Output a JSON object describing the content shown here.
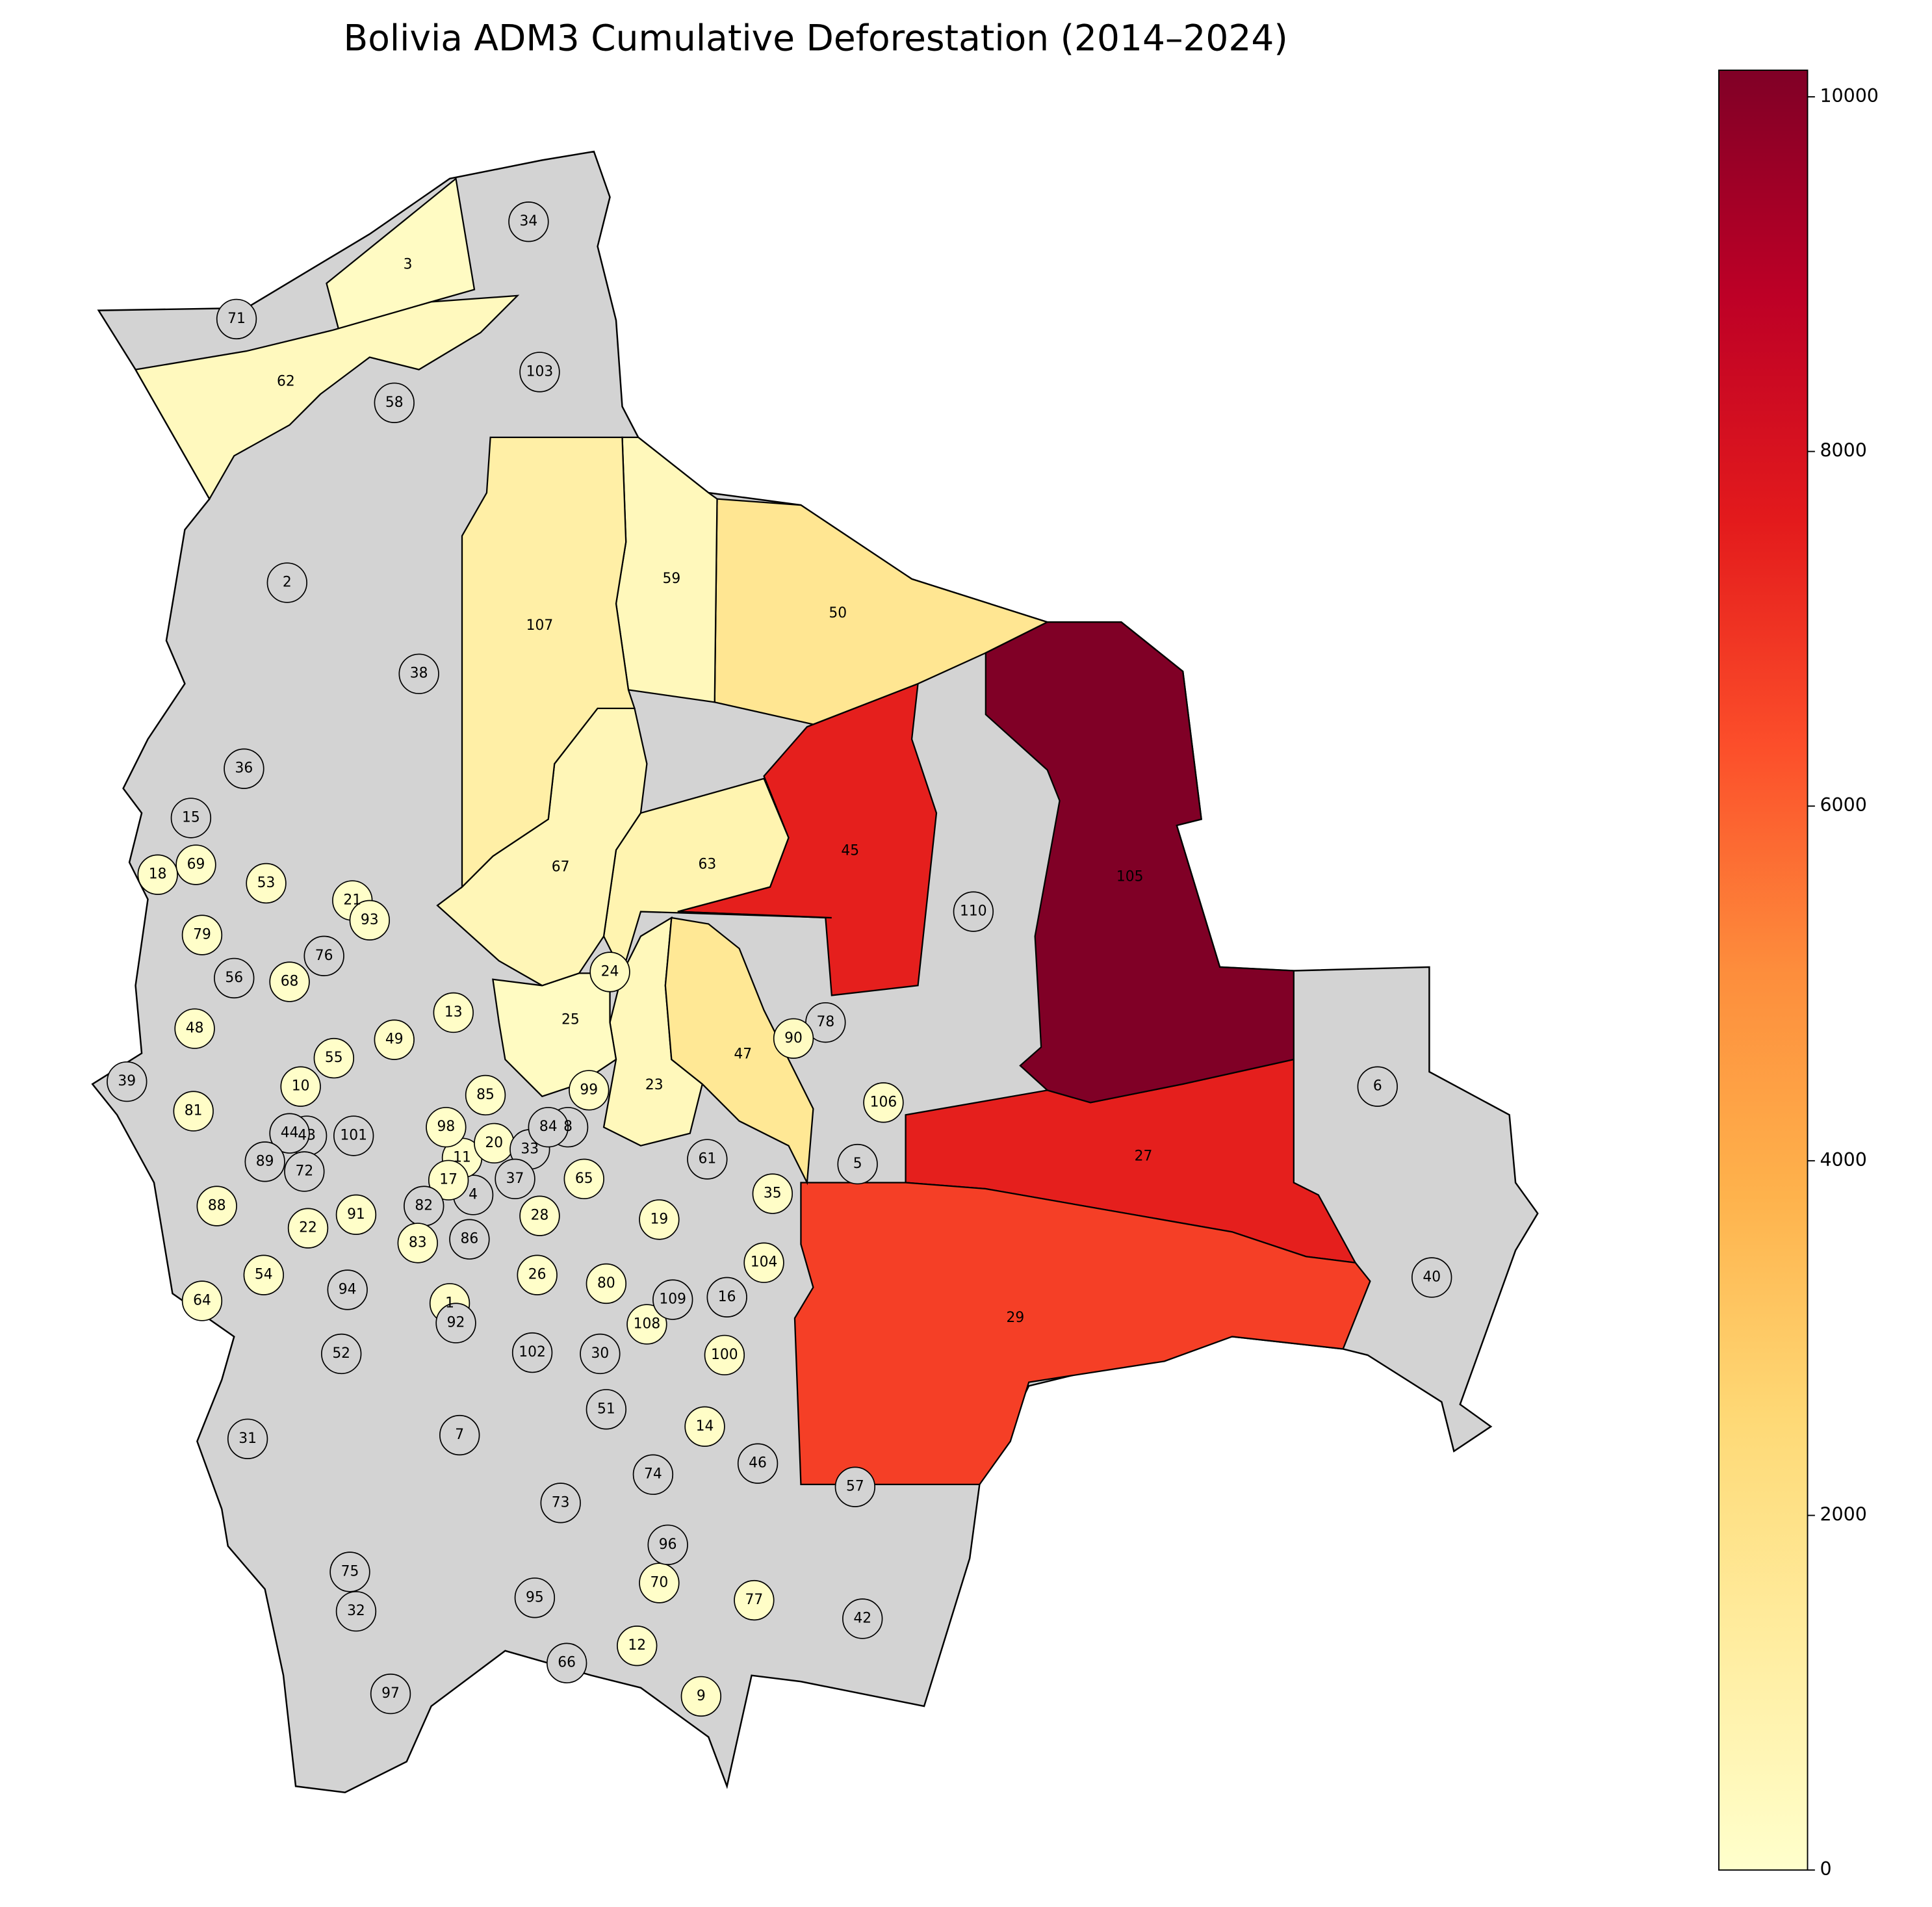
{
  "chart_data": {
    "type": "choropleth",
    "title": "Bolivia ADM3 Cumulative Deforestation (2014–2024)",
    "cmap": "YlOrRd",
    "colors": [
      "#ffffcc",
      "#ffeda0",
      "#fed976",
      "#feb24c",
      "#fd8d3c",
      "#fc4e2a",
      "#e31a1c",
      "#bd0026",
      "#800026"
    ],
    "missing_color": "#d3d3d3",
    "clim": [
      0,
      10150
    ],
    "cticks": [
      0,
      2000,
      4000,
      6000,
      8000,
      10000
    ],
    "regions": [
      {
        "name": "1",
        "value": 150
      },
      {
        "name": "2",
        "value": null
      },
      {
        "name": "3",
        "value": 250
      },
      {
        "name": "4",
        "value": null
      },
      {
        "name": "5",
        "value": null
      },
      {
        "name": "6",
        "value": null
      },
      {
        "name": "7",
        "value": null
      },
      {
        "name": "8",
        "value": null
      },
      {
        "name": "9",
        "value": 150
      },
      {
        "name": "10",
        "value": 100
      },
      {
        "name": "11",
        "value": 100
      },
      {
        "name": "12",
        "value": 100
      },
      {
        "name": "13",
        "value": 150
      },
      {
        "name": "14",
        "value": 150
      },
      {
        "name": "15",
        "value": null
      },
      {
        "name": "16",
        "value": null
      },
      {
        "name": "17",
        "value": 100
      },
      {
        "name": "18",
        "value": 100
      },
      {
        "name": "19",
        "value": 150
      },
      {
        "name": "20",
        "value": 100
      },
      {
        "name": "21",
        "value": 100
      },
      {
        "name": "22",
        "value": 100
      },
      {
        "name": "23",
        "value": 500
      },
      {
        "name": "24",
        "value": 300
      },
      {
        "name": "25",
        "value": 300
      },
      {
        "name": "26",
        "value": 100
      },
      {
        "name": "27",
        "value": 7500
      },
      {
        "name": "28",
        "value": 100
      },
      {
        "name": "29",
        "value": 6700
      },
      {
        "name": "30",
        "value": null
      },
      {
        "name": "31",
        "value": null
      },
      {
        "name": "32",
        "value": null
      },
      {
        "name": "33",
        "value": null
      },
      {
        "name": "34",
        "value": null
      },
      {
        "name": "35",
        "value": 150
      },
      {
        "name": "36",
        "value": null
      },
      {
        "name": "37",
        "value": null
      },
      {
        "name": "38",
        "value": null
      },
      {
        "name": "39",
        "value": null
      },
      {
        "name": "40",
        "value": null
      },
      {
        "name": "42",
        "value": null
      },
      {
        "name": "43",
        "value": null
      },
      {
        "name": "44",
        "value": null
      },
      {
        "name": "45",
        "value": 7500
      },
      {
        "name": "46",
        "value": null
      },
      {
        "name": "47",
        "value": 1600
      },
      {
        "name": "48",
        "value": 100
      },
      {
        "name": "49",
        "value": 150
      },
      {
        "name": "50",
        "value": 1700
      },
      {
        "name": "51",
        "value": null
      },
      {
        "name": "52",
        "value": null
      },
      {
        "name": "53",
        "value": 150
      },
      {
        "name": "54",
        "value": 100
      },
      {
        "name": "55",
        "value": 100
      },
      {
        "name": "56",
        "value": null
      },
      {
        "name": "57",
        "value": null
      },
      {
        "name": "58",
        "value": null
      },
      {
        "name": "59",
        "value": 500
      },
      {
        "name": "61",
        "value": null
      },
      {
        "name": "62",
        "value": 400
      },
      {
        "name": "63",
        "value": 800
      },
      {
        "name": "64",
        "value": 100
      },
      {
        "name": "65",
        "value": 100
      },
      {
        "name": "66",
        "value": null
      },
      {
        "name": "67",
        "value": 600
      },
      {
        "name": "68",
        "value": 100
      },
      {
        "name": "69",
        "value": 100
      },
      {
        "name": "70",
        "value": 100
      },
      {
        "name": "71",
        "value": null
      },
      {
        "name": "72",
        "value": null
      },
      {
        "name": "73",
        "value": null
      },
      {
        "name": "74",
        "value": null
      },
      {
        "name": "75",
        "value": null
      },
      {
        "name": "76",
        "value": null
      },
      {
        "name": "77",
        "value": 150
      },
      {
        "name": "78",
        "value": null
      },
      {
        "name": "79",
        "value": 100
      },
      {
        "name": "80",
        "value": 100
      },
      {
        "name": "81",
        "value": 150
      },
      {
        "name": "82",
        "value": null
      },
      {
        "name": "83",
        "value": 100
      },
      {
        "name": "84",
        "value": null
      },
      {
        "name": "85",
        "value": 100
      },
      {
        "name": "86",
        "value": null
      },
      {
        "name": "88",
        "value": 150
      },
      {
        "name": "89",
        "value": null
      },
      {
        "name": "90",
        "value": 300
      },
      {
        "name": "91",
        "value": 100
      },
      {
        "name": "92",
        "value": null
      },
      {
        "name": "93",
        "value": 100
      },
      {
        "name": "94",
        "value": null
      },
      {
        "name": "95",
        "value": null
      },
      {
        "name": "96",
        "value": null
      },
      {
        "name": "97",
        "value": null
      },
      {
        "name": "98",
        "value": 100
      },
      {
        "name": "99",
        "value": 150
      },
      {
        "name": "100",
        "value": 150
      },
      {
        "name": "101",
        "value": null
      },
      {
        "name": "102",
        "value": null
      },
      {
        "name": "103",
        "value": null
      },
      {
        "name": "104",
        "value": 150
      },
      {
        "name": "105",
        "value": 10150
      },
      {
        "name": "106",
        "value": 150
      },
      {
        "name": "107",
        "value": 1100
      },
      {
        "name": "108",
        "value": 100
      },
      {
        "name": "109",
        "value": null
      },
      {
        "name": "110",
        "value": null
      }
    ]
  }
}
